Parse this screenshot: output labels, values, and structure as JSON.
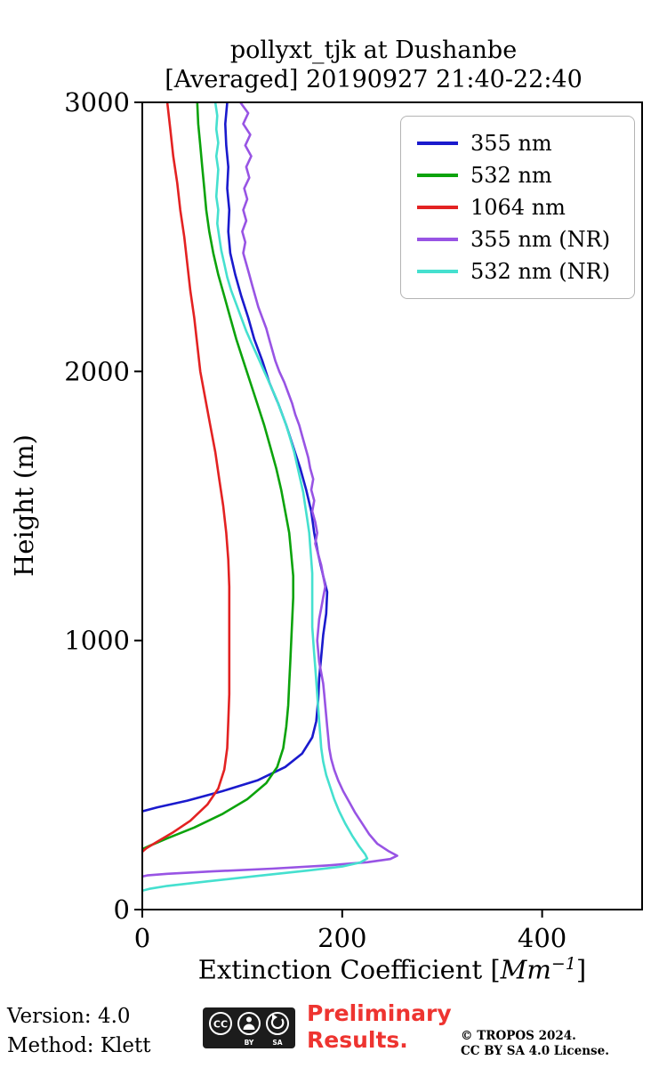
{
  "title": {
    "line1": "pollyxt_tjk at Dushanbe",
    "line2": "[Averaged] 20190927 21:40-22:40"
  },
  "axis": {
    "ylabel": "Height (m)",
    "xlabel_prefix": "Extinction Coefficient [",
    "xlabel_unit": "Mm",
    "xlabel_exp": "−1",
    "xlabel_suffix": "]"
  },
  "chart_data": {
    "type": "line",
    "title": "pollyxt_tjk at Dushanbe [Averaged] 20190927 21:40-22:40",
    "xlabel": "Extinction Coefficient [Mm⁻¹]",
    "ylabel": "Height (m)",
    "xlim": [
      0,
      500
    ],
    "ylim": [
      0,
      3000
    ],
    "xticks": [
      0,
      200,
      400
    ],
    "yticks": [
      0,
      1000,
      2000,
      3000
    ],
    "grid": false,
    "legend_position": "upper right",
    "series": [
      {
        "name": "355 nm",
        "color": "#1a1acd",
        "points": [
          [
            85,
            3000
          ],
          [
            83,
            2920
          ],
          [
            84,
            2840
          ],
          [
            86,
            2760
          ],
          [
            85,
            2680
          ],
          [
            87,
            2600
          ],
          [
            86,
            2520
          ],
          [
            88,
            2440
          ],
          [
            93,
            2360
          ],
          [
            99,
            2280
          ],
          [
            106,
            2200
          ],
          [
            112,
            2120
          ],
          [
            120,
            2040
          ],
          [
            127,
            1960
          ],
          [
            136,
            1880
          ],
          [
            144,
            1800
          ],
          [
            151,
            1720
          ],
          [
            158,
            1640
          ],
          [
            164,
            1560
          ],
          [
            169,
            1480
          ],
          [
            172,
            1400
          ],
          [
            176,
            1320
          ],
          [
            181,
            1240
          ],
          [
            185,
            1180
          ],
          [
            184,
            1100
          ],
          [
            181,
            1020
          ],
          [
            179,
            940
          ],
          [
            177,
            860
          ],
          [
            176,
            780
          ],
          [
            174,
            700
          ],
          [
            170,
            640
          ],
          [
            160,
            580
          ],
          [
            143,
            530
          ],
          [
            115,
            480
          ],
          [
            80,
            440
          ],
          [
            45,
            405
          ],
          [
            15,
            380
          ],
          [
            0,
            365
          ]
        ]
      },
      {
        "name": "532 nm",
        "color": "#0ca30c",
        "points": [
          [
            55,
            3000
          ],
          [
            56,
            2920
          ],
          [
            58,
            2840
          ],
          [
            60,
            2760
          ],
          [
            62,
            2680
          ],
          [
            64,
            2600
          ],
          [
            67,
            2520
          ],
          [
            71,
            2440
          ],
          [
            76,
            2360
          ],
          [
            82,
            2280
          ],
          [
            88,
            2200
          ],
          [
            94,
            2120
          ],
          [
            101,
            2040
          ],
          [
            108,
            1960
          ],
          [
            115,
            1880
          ],
          [
            122,
            1800
          ],
          [
            128,
            1720
          ],
          [
            134,
            1640
          ],
          [
            139,
            1560
          ],
          [
            143,
            1480
          ],
          [
            147,
            1400
          ],
          [
            149,
            1320
          ],
          [
            151,
            1240
          ],
          [
            151,
            1160
          ],
          [
            150,
            1080
          ],
          [
            149,
            1000
          ],
          [
            148,
            920
          ],
          [
            147,
            840
          ],
          [
            146,
            760
          ],
          [
            144,
            680
          ],
          [
            141,
            600
          ],
          [
            135,
            530
          ],
          [
            124,
            470
          ],
          [
            105,
            410
          ],
          [
            80,
            355
          ],
          [
            52,
            305
          ],
          [
            25,
            265
          ],
          [
            8,
            238
          ],
          [
            0,
            225
          ]
        ]
      },
      {
        "name": "1064 nm",
        "color": "#e32222",
        "points": [
          [
            25,
            3000
          ],
          [
            28,
            2900
          ],
          [
            31,
            2800
          ],
          [
            35,
            2700
          ],
          [
            38,
            2600
          ],
          [
            42,
            2500
          ],
          [
            45,
            2400
          ],
          [
            48,
            2300
          ],
          [
            52,
            2200
          ],
          [
            55,
            2100
          ],
          [
            58,
            2000
          ],
          [
            63,
            1900
          ],
          [
            68,
            1800
          ],
          [
            73,
            1700
          ],
          [
            77,
            1600
          ],
          [
            81,
            1500
          ],
          [
            84,
            1400
          ],
          [
            86,
            1300
          ],
          [
            87,
            1200
          ],
          [
            87,
            1100
          ],
          [
            87,
            1000
          ],
          [
            87,
            900
          ],
          [
            87,
            800
          ],
          [
            86,
            700
          ],
          [
            85,
            600
          ],
          [
            82,
            520
          ],
          [
            76,
            450
          ],
          [
            65,
            390
          ],
          [
            48,
            330
          ],
          [
            30,
            285
          ],
          [
            14,
            250
          ],
          [
            4,
            228
          ],
          [
            0,
            215
          ]
        ]
      },
      {
        "name": "355 nm (NR)",
        "color": "#9854e4",
        "points": [
          [
            98,
            3000
          ],
          [
            106,
            2960
          ],
          [
            101,
            2920
          ],
          [
            108,
            2880
          ],
          [
            103,
            2840
          ],
          [
            109,
            2800
          ],
          [
            104,
            2760
          ],
          [
            107,
            2720
          ],
          [
            102,
            2680
          ],
          [
            105,
            2640
          ],
          [
            101,
            2600
          ],
          [
            104,
            2560
          ],
          [
            100,
            2520
          ],
          [
            103,
            2480
          ],
          [
            101,
            2440
          ],
          [
            104,
            2400
          ],
          [
            107,
            2360
          ],
          [
            110,
            2320
          ],
          [
            113,
            2280
          ],
          [
            116,
            2240
          ],
          [
            120,
            2200
          ],
          [
            124,
            2160
          ],
          [
            127,
            2120
          ],
          [
            130,
            2080
          ],
          [
            133,
            2040
          ],
          [
            137,
            2000
          ],
          [
            142,
            1960
          ],
          [
            146,
            1920
          ],
          [
            150,
            1880
          ],
          [
            153,
            1840
          ],
          [
            157,
            1800
          ],
          [
            160,
            1760
          ],
          [
            163,
            1720
          ],
          [
            166,
            1680
          ],
          [
            168,
            1640
          ],
          [
            171,
            1600
          ],
          [
            169,
            1560
          ],
          [
            172,
            1520
          ],
          [
            170,
            1480
          ],
          [
            173,
            1440
          ],
          [
            175,
            1400
          ],
          [
            173,
            1360
          ],
          [
            176,
            1320
          ],
          [
            179,
            1280
          ],
          [
            181,
            1240
          ],
          [
            183,
            1200
          ],
          [
            181,
            1160
          ],
          [
            179,
            1120
          ],
          [
            177,
            1080
          ],
          [
            176,
            1040
          ],
          [
            175,
            1000
          ],
          [
            176,
            960
          ],
          [
            177,
            920
          ],
          [
            179,
            880
          ],
          [
            181,
            840
          ],
          [
            182,
            800
          ],
          [
            183,
            760
          ],
          [
            184,
            720
          ],
          [
            185,
            680
          ],
          [
            186,
            640
          ],
          [
            187,
            600
          ],
          [
            189,
            560
          ],
          [
            192,
            520
          ],
          [
            196,
            480
          ],
          [
            201,
            440
          ],
          [
            207,
            400
          ],
          [
            213,
            360
          ],
          [
            220,
            320
          ],
          [
            227,
            280
          ],
          [
            235,
            245
          ],
          [
            246,
            218
          ],
          [
            255,
            200
          ],
          [
            248,
            188
          ],
          [
            225,
            176
          ],
          [
            185,
            164
          ],
          [
            130,
            152
          ],
          [
            70,
            142
          ],
          [
            25,
            133
          ],
          [
            5,
            127
          ],
          [
            0,
            123
          ]
        ]
      },
      {
        "name": "532 nm (NR)",
        "color": "#45e0cf",
        "points": [
          [
            73,
            3000
          ],
          [
            75,
            2950
          ],
          [
            74,
            2900
          ],
          [
            76,
            2850
          ],
          [
            74,
            2800
          ],
          [
            76,
            2750
          ],
          [
            75,
            2700
          ],
          [
            74,
            2650
          ],
          [
            76,
            2600
          ],
          [
            75,
            2550
          ],
          [
            77,
            2500
          ],
          [
            79,
            2450
          ],
          [
            82,
            2400
          ],
          [
            85,
            2350
          ],
          [
            89,
            2300
          ],
          [
            94,
            2250
          ],
          [
            99,
            2200
          ],
          [
            104,
            2150
          ],
          [
            110,
            2100
          ],
          [
            116,
            2050
          ],
          [
            122,
            2000
          ],
          [
            128,
            1950
          ],
          [
            134,
            1900
          ],
          [
            139,
            1850
          ],
          [
            144,
            1800
          ],
          [
            148,
            1750
          ],
          [
            152,
            1700
          ],
          [
            155,
            1650
          ],
          [
            158,
            1600
          ],
          [
            161,
            1550
          ],
          [
            163,
            1500
          ],
          [
            165,
            1450
          ],
          [
            167,
            1400
          ],
          [
            168,
            1350
          ],
          [
            169,
            1300
          ],
          [
            170,
            1250
          ],
          [
            170,
            1200
          ],
          [
            170,
            1150
          ],
          [
            170,
            1100
          ],
          [
            170,
            1050
          ],
          [
            171,
            1000
          ],
          [
            172,
            950
          ],
          [
            173,
            900
          ],
          [
            174,
            850
          ],
          [
            175,
            800
          ],
          [
            176,
            750
          ],
          [
            177,
            700
          ],
          [
            178,
            650
          ],
          [
            179,
            600
          ],
          [
            181,
            550
          ],
          [
            184,
            500
          ],
          [
            188,
            455
          ],
          [
            192,
            410
          ],
          [
            197,
            365
          ],
          [
            203,
            320
          ],
          [
            210,
            275
          ],
          [
            217,
            235
          ],
          [
            223,
            205
          ],
          [
            225,
            190
          ],
          [
            218,
            175
          ],
          [
            200,
            160
          ],
          [
            165,
            145
          ],
          [
            115,
            125
          ],
          [
            65,
            105
          ],
          [
            25,
            88
          ],
          [
            7,
            77
          ],
          [
            0,
            70
          ]
        ]
      }
    ]
  },
  "footer": {
    "version": "Version: 4.0",
    "method": "Method: Klett",
    "preliminary_line1": "Preliminary",
    "preliminary_line2": "Results.",
    "copyright_line1": "© TROPOS 2024.",
    "copyright_line2": "CC BY SA 4.0 License.",
    "badge": {
      "cc": "CC",
      "by": "BY",
      "sa": "SA"
    }
  }
}
